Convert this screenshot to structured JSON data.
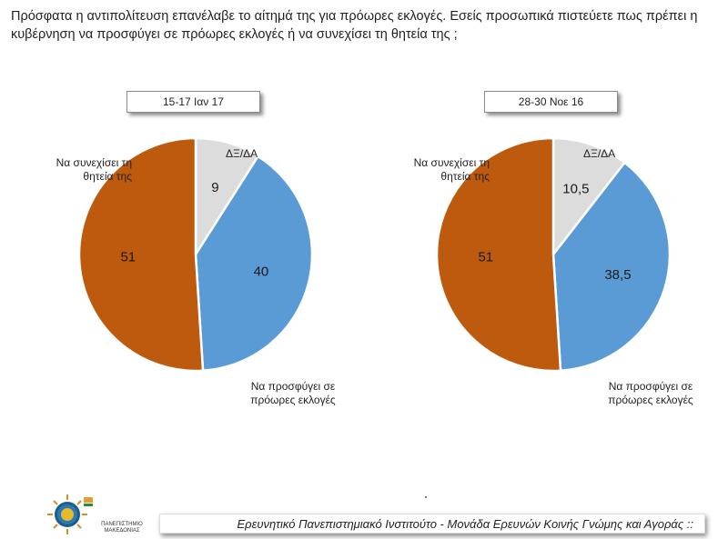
{
  "question": "Πρόσφατα η αντιπολίτευση επανέλαβε το αίτημά της για πρόωρες εκλογές. Εσείς προσωπικά πιστεύετε πως πρέπει η κυβέρνηση να προσφύγει σε πρόωρες εκλογές ή να συνεχίσει τη θητεία της ;",
  "footer": "Ερευνητικό Πανεπιστημιακό Ινστιτούτο - Μονάδα Ερευνών Κοινής Γνώμης και Αγοράς ::",
  "logo_text": "ΠΑΝΕΠΙΣΤΗΜΙΟ ΜΑΚΕΔΟΝΙΑΣ",
  "colors": {
    "continue": "#BE5A0E",
    "early": "#5B9BD5",
    "dk": "#DCDCDC"
  },
  "chart_data": [
    {
      "type": "pie",
      "title": "15-17 Ιαν 17",
      "slices": [
        {
          "label": "ΔΞ/ΔΑ",
          "value": 9,
          "value_label": "9"
        },
        {
          "label": "Να προσφύγει σε πρόωρες εκλογές",
          "value": 40,
          "value_label": "40"
        },
        {
          "label": "Να συνεχίσει τη θητεία της",
          "value": 51,
          "value_label": "51"
        }
      ]
    },
    {
      "type": "pie",
      "title": "28-30 Νοε 16",
      "slices": [
        {
          "label": "ΔΞ/ΔΑ",
          "value": 10.5,
          "value_label": "10,5"
        },
        {
          "label": "Να προσφύγει σε πρόωρες εκλογές",
          "value": 38.5,
          "value_label": "38,5"
        },
        {
          "label": "Να συνεχίσει τη θητεία της",
          "value": 51,
          "value_label": "51"
        }
      ]
    }
  ],
  "labels": {
    "continue_line1": "Να συνεχίσει τη",
    "continue_line2": "θητεία της",
    "dk": "ΔΞ/ΔΑ",
    "early_line1": "Να προσφύγει  σε",
    "early_line2": "πρόωρες εκλογές"
  }
}
